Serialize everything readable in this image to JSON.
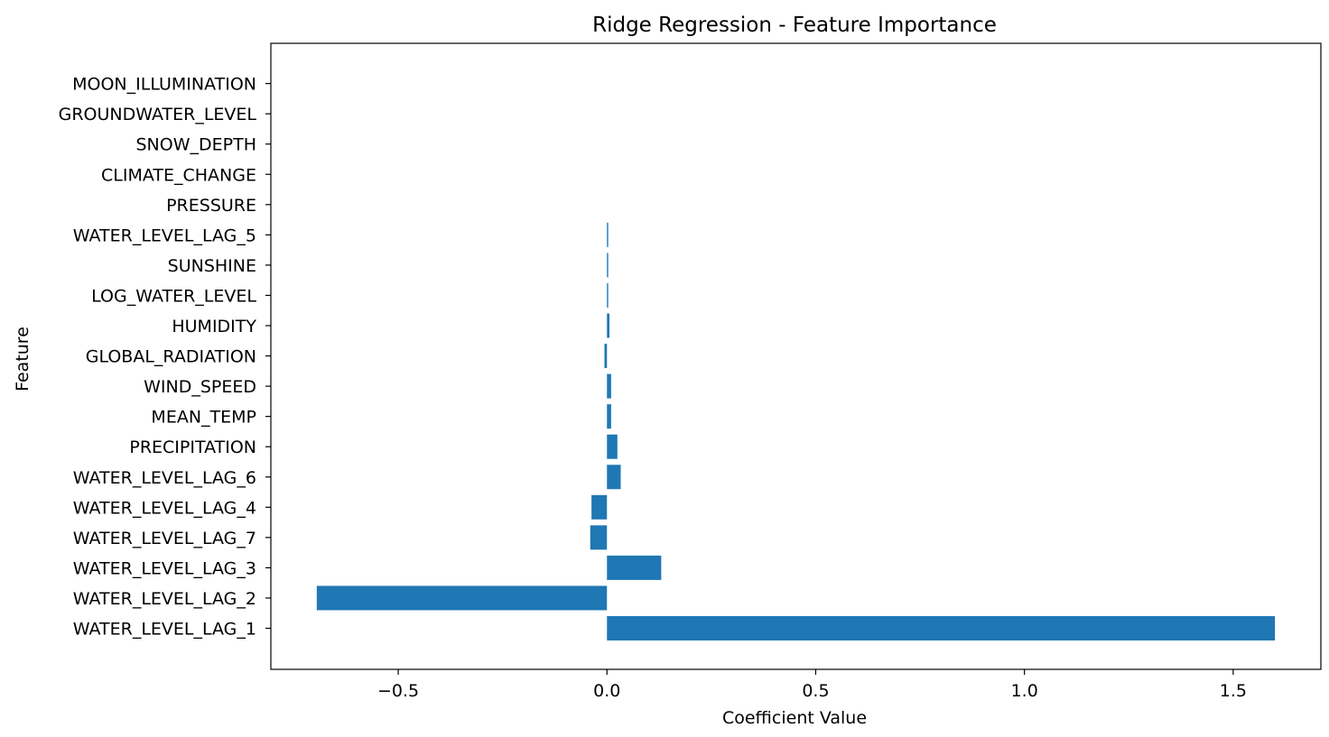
{
  "chart_data": {
    "type": "bar",
    "orientation": "horizontal",
    "title": "Ridge Regression - Feature Importance",
    "xlabel": "Coefficient Value",
    "ylabel": "Feature",
    "categories": [
      "WATER_LEVEL_LAG_1",
      "WATER_LEVEL_LAG_2",
      "WATER_LEVEL_LAG_3",
      "WATER_LEVEL_LAG_7",
      "WATER_LEVEL_LAG_4",
      "WATER_LEVEL_LAG_6",
      "PRECIPITATION",
      "MEAN_TEMP",
      "WIND_SPEED",
      "GLOBAL_RADIATION",
      "HUMIDITY",
      "LOG_WATER_LEVEL",
      "SUNSHINE",
      "WATER_LEVEL_LAG_5",
      "PRESSURE",
      "CLIMATE_CHANGE",
      "SNOW_DEPTH",
      "GROUNDWATER_LEVEL",
      "MOON_ILLUMINATION"
    ],
    "values": [
      1.6,
      -0.695,
      0.13,
      -0.04,
      -0.037,
      0.033,
      0.025,
      0.01,
      0.01,
      -0.006,
      0.006,
      0.003,
      0.003,
      0.003,
      0.0,
      0.0,
      0.0,
      0.0,
      0.0
    ],
    "xlim": [
      -0.805,
      1.71
    ],
    "xticks": [
      -0.5,
      0.0,
      0.5,
      1.0,
      1.5
    ],
    "xtick_labels": [
      "−0.5",
      "0.0",
      "0.5",
      "1.0",
      "1.5"
    ],
    "bar_color": "#1f77b4",
    "grid": false,
    "legend": "none"
  }
}
